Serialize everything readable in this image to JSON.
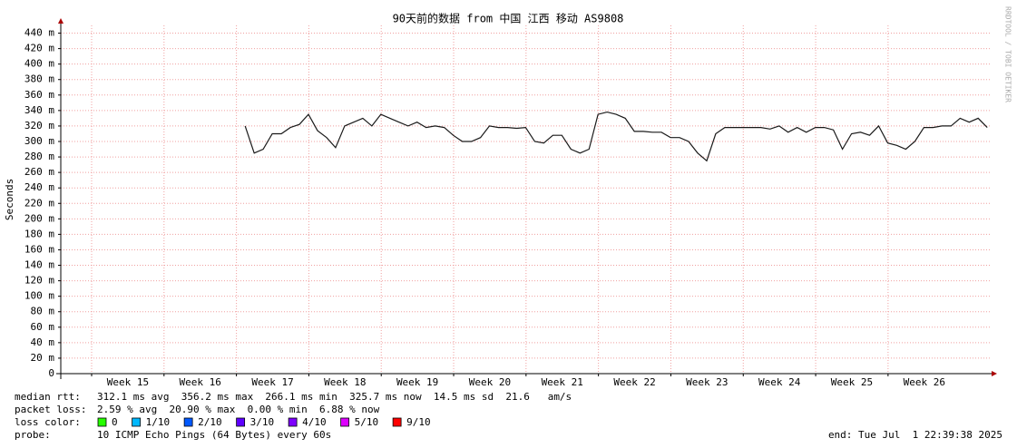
{
  "chart_data": {
    "type": "line",
    "title": "90天前的数据 from 中国 江西 移动 AS9808",
    "y_label": "Seconds",
    "watermark": "RRDTOOL / TOBI OETIKER",
    "color": "#1a1a1a",
    "grid": true,
    "xlim": [
      14.574,
      27.43
    ],
    "ylim": [
      0,
      450
    ],
    "xticks": [
      {
        "value": 15.5,
        "label": "Week 15"
      },
      {
        "value": 16.5,
        "label": "Week 16"
      },
      {
        "value": 17.5,
        "label": "Week 17"
      },
      {
        "value": 18.5,
        "label": "Week 18"
      },
      {
        "value": 19.5,
        "label": "Week 19"
      },
      {
        "value": 20.5,
        "label": "Week 20"
      },
      {
        "value": 21.5,
        "label": "Week 21"
      },
      {
        "value": 22.5,
        "label": "Week 22"
      },
      {
        "value": 23.5,
        "label": "Week 23"
      },
      {
        "value": 24.5,
        "label": "Week 24"
      },
      {
        "value": 25.5,
        "label": "Week 25"
      },
      {
        "value": 26.5,
        "label": "Week 26"
      }
    ],
    "yticks": [
      0,
      {
        "value": 20,
        "label": "20 m"
      },
      {
        "value": 40,
        "label": "40 m"
      },
      {
        "value": 60,
        "label": "60 m"
      },
      {
        "value": 80,
        "label": "80 m"
      },
      {
        "value": 100,
        "label": "100 m"
      },
      {
        "value": 120,
        "label": "120 m"
      },
      {
        "value": 140,
        "label": "140 m"
      },
      {
        "value": 160,
        "label": "160 m"
      },
      {
        "value": 180,
        "label": "180 m"
      },
      {
        "value": 200,
        "label": "200 m"
      },
      {
        "value": 220,
        "label": "220 m"
      },
      {
        "value": 240,
        "label": "240 m"
      },
      {
        "value": 260,
        "label": "260 m"
      },
      {
        "value": 280,
        "label": "280 m"
      },
      {
        "value": 300,
        "label": "300 m"
      },
      {
        "value": 320,
        "label": "320 m"
      },
      {
        "value": 340,
        "label": "340 m"
      },
      {
        "value": 360,
        "label": "360 m"
      },
      {
        "value": 380,
        "label": "380 m"
      },
      {
        "value": 400,
        "label": "400 m"
      },
      {
        "value": 420,
        "label": "420 m"
      },
      {
        "value": 440,
        "label": "440 m"
      }
    ],
    "x": [
      17.12,
      17.245,
      17.37,
      17.495,
      17.62,
      17.745,
      17.87,
      17.995,
      18.12,
      18.245,
      18.37,
      18.495,
      18.62,
      18.745,
      18.87,
      18.995,
      19.12,
      19.245,
      19.37,
      19.495,
      19.62,
      19.745,
      19.87,
      19.995,
      20.12,
      20.245,
      20.37,
      20.495,
      20.62,
      20.745,
      20.87,
      20.995,
      21.12,
      21.245,
      21.37,
      21.495,
      21.62,
      21.745,
      21.87,
      21.995,
      22.12,
      22.245,
      22.37,
      22.495,
      22.62,
      22.745,
      22.87,
      22.995,
      23.12,
      23.245,
      23.37,
      23.495,
      23.62,
      23.745,
      23.87,
      23.995,
      24.12,
      24.245,
      24.37,
      24.495,
      24.62,
      24.745,
      24.87,
      24.995,
      25.12,
      25.245,
      25.37,
      25.495,
      25.62,
      25.745,
      25.87,
      25.995,
      26.12,
      26.245,
      26.37,
      26.495,
      26.62,
      26.745,
      26.87,
      26.995,
      27.12,
      27.245,
      27.37
    ],
    "values": [
      320,
      285,
      290,
      310,
      310,
      318,
      322,
      335,
      314,
      305,
      292,
      320,
      325,
      330,
      320,
      335,
      330,
      325,
      320,
      325,
      318,
      320,
      318,
      308,
      300,
      300,
      305,
      320,
      318,
      318,
      317,
      318,
      300,
      298,
      308,
      308,
      290,
      285,
      290,
      335,
      338,
      335,
      330,
      313,
      313,
      312,
      312,
      305,
      305,
      300,
      285,
      275,
      310,
      318,
      318,
      318,
      318,
      318,
      316,
      320,
      312,
      318,
      312,
      318,
      318,
      315,
      290,
      310,
      312,
      308,
      320,
      298,
      295,
      290,
      300,
      318,
      318,
      320,
      320,
      330,
      325,
      330,
      318
    ],
    "stats": [
      {
        "label": "median rtt:",
        "text": "312.1 ms avg  356.2 ms max  266.1 ms min  325.7 ms now  14.5 ms sd  21.6   am/s"
      },
      {
        "label": "packet loss:",
        "text": "2.59 % avg  20.90 % max  0.00 % min  6.88 % now"
      }
    ],
    "loss_legend_label": "loss color:",
    "loss_legend": [
      {
        "label": "0",
        "color": "#26ff00"
      },
      {
        "label": "1/10",
        "color": "#00b8ff"
      },
      {
        "label": "2/10",
        "color": "#0059ff"
      },
      {
        "label": "3/10",
        "color": "#5e00ff"
      },
      {
        "label": "4/10",
        "color": "#7e00ff"
      },
      {
        "label": "5/10",
        "color": "#dd00ff"
      },
      {
        "label": "9/10",
        "color": "#ff0000"
      }
    ],
    "probe_label": "probe:",
    "probe": "10 ICMP Echo Pings (64 Bytes) every 60s",
    "end": "end: Tue Jul  1 22:39:38 2025"
  }
}
